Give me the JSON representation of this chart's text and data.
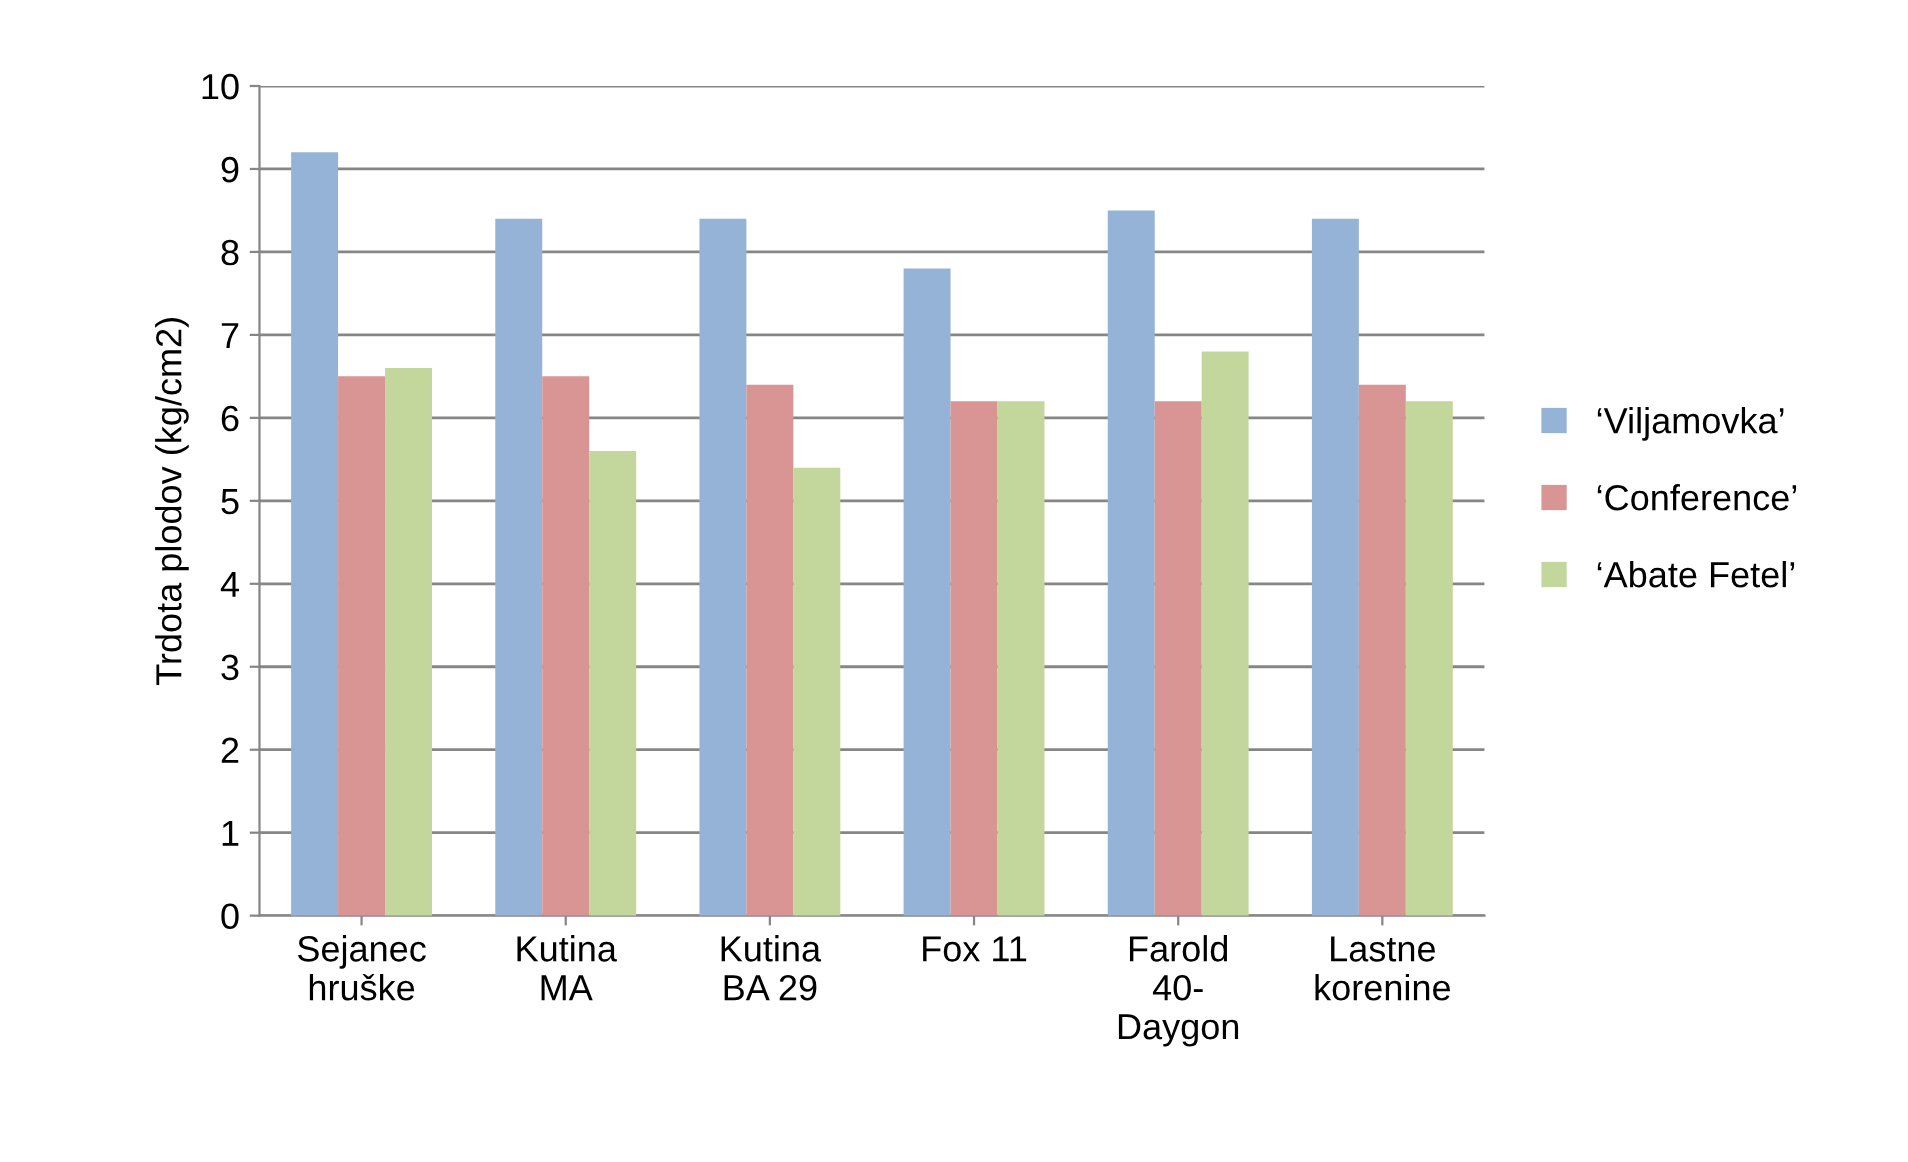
{
  "chart_data": {
    "type": "bar",
    "ylabel": "Trdota plodov (kg/cm2)",
    "categories": [
      "Sejanec\nhruške",
      "Kutina\nMA",
      "Kutina\nBA 29",
      "Fox 11",
      "Farold\n40-\nDaygon",
      "Lastne\nkorenine"
    ],
    "series": [
      {
        "name": "‘Viljamovka’",
        "color": "#95b3d7",
        "values": [
          9.2,
          8.4,
          8.4,
          7.8,
          8.5,
          8.4
        ]
      },
      {
        "name": "‘Conference’",
        "color": "#d99594",
        "values": [
          6.5,
          6.5,
          6.4,
          6.2,
          6.2,
          6.4
        ]
      },
      {
        "name": "‘Abate Fetel’",
        "color": "#c3d69b",
        "values": [
          6.6,
          5.6,
          5.4,
          6.2,
          6.8,
          6.2
        ]
      }
    ],
    "ylim": [
      0,
      10
    ],
    "yticks": [
      0,
      1,
      2,
      3,
      4,
      5,
      6,
      7,
      8,
      9,
      10
    ],
    "grid": "y",
    "legend": "right"
  }
}
